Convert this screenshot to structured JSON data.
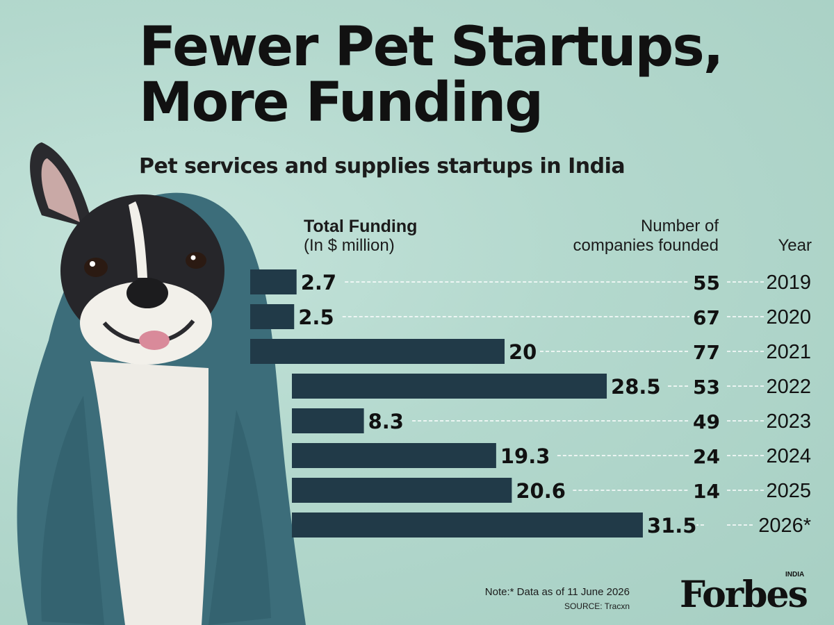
{
  "header": {
    "title_line1": "Fewer Pet Startups,",
    "title_line2": "More Funding",
    "subtitle": "Pet services and supplies startups in India"
  },
  "columns": {
    "funding_label": "Total Funding",
    "funding_unit": "(In $ million)",
    "count_label_line1": "Number of",
    "count_label_line2": "companies founded",
    "year_label": "Year"
  },
  "colors": {
    "bar": "#213a48",
    "background": "#b3d8cd",
    "text": "#111111",
    "towel": "#3c6d7a"
  },
  "chart_data": {
    "type": "bar",
    "orientation": "horizontal",
    "title": "Fewer Pet Startups, More Funding",
    "subtitle": "Pet services and supplies startups in India",
    "categories": [
      "2019",
      "2020",
      "2021",
      "2022",
      "2023",
      "2024",
      "2025",
      "2026*"
    ],
    "series": [
      {
        "name": "Total Funding (In $ million)",
        "values": [
          2.7,
          2.5,
          20,
          28.5,
          8.3,
          19.3,
          20.6,
          31.5
        ],
        "labels": [
          "2.7",
          "2.5",
          "20",
          "28.5",
          "8.3",
          "19.3",
          "20.6",
          "31.5"
        ]
      },
      {
        "name": "Number of companies founded",
        "values": [
          55,
          67,
          77,
          53,
          49,
          24,
          14,
          null
        ],
        "labels": [
          "55",
          "67",
          "77",
          "53",
          "49",
          "24",
          "14",
          ""
        ]
      }
    ],
    "grid": false,
    "legend": "column headers at top"
  },
  "footer": {
    "note": "Note:* Data as of 11 June 2026",
    "source": "SOURCE: Tracxn",
    "brand": "Forbes",
    "brand_tag": "INDIA"
  },
  "image": {
    "subject": "dog-wrapped-in-towel"
  }
}
